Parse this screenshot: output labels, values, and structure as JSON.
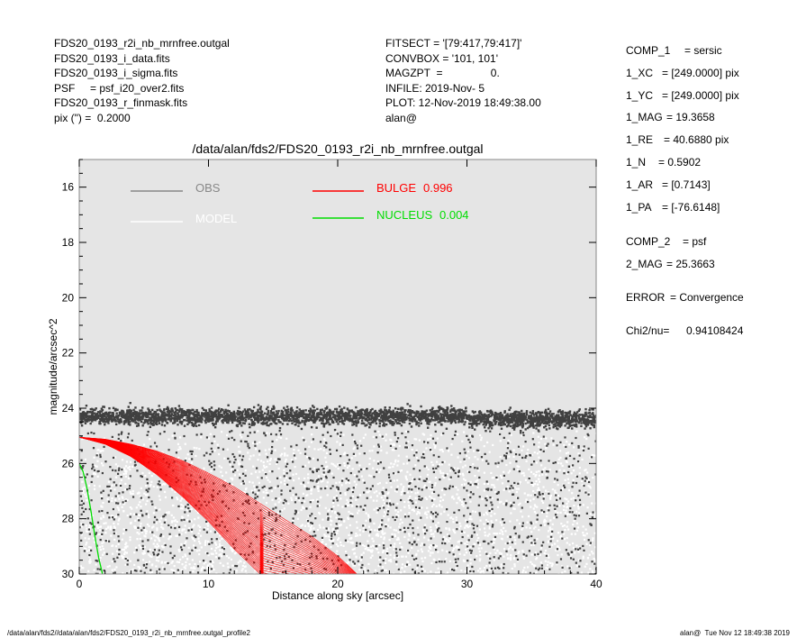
{
  "header_left": [
    "FDS20_0193_r2i_nb_mrnfree.outgal",
    "FDS20_0193_i_data.fits",
    "FDS20_0193_i_sigma.fits",
    "PSF     = psf_i20_over2.fits",
    "FDS20_0193_r_finmask.fits",
    "pix (\") =  0.2000"
  ],
  "header_mid": [
    "FITSECT = '[79:417,79:417]'",
    "CONVBOX = '101, 101'",
    "MAGZPT  =                0.",
    "INFILE: 2019-Nov- 5",
    "PLOT: 12-Nov-2019 18:49:38.00",
    "alan@"
  ],
  "params": [
    {
      "key": "COMP_1",
      "value": "= sersic"
    },
    {
      "key": "1_XC",
      "value": "= [249.0000] pix"
    },
    {
      "key": "1_YC",
      "value": "= [249.0000] pix"
    },
    {
      "key": "1_MAG",
      "value": "= 19.3658"
    },
    {
      "key": "1_RE",
      "value": "= 40.6880 pix"
    },
    {
      "key": "1_N",
      "value": "= 0.5902"
    },
    {
      "key": "1_AR",
      "value": "= [0.7143]"
    },
    {
      "key": "1_PA",
      "value": "= [-76.6148]"
    },
    {
      "key": "COMP_2",
      "value": "= psf"
    },
    {
      "key": "2_MAG",
      "value": "= 25.3663"
    },
    {
      "key": "ERROR",
      "value": "= Convergence"
    },
    {
      "key": "Chi2/nu=",
      "value": "0.94108424"
    }
  ],
  "footer_left": "/data/alan/fds2//data/alan/fds2/FDS20_0193_r2i_nb_mrnfree.outgal_profile2",
  "footer_right": "alan@  Tue Nov 12 18:49:38 2019",
  "colors": {
    "plot_bg": "#e5e5e5",
    "obs": "#404040",
    "obs_legend": "#888888",
    "model": "#ffffff",
    "bulge": "#ff0000",
    "nucleus": "#00dd00"
  },
  "chart_data": {
    "type": "scatter",
    "title": "/data/alan/fds2/FDS20_0193_r2i_nb_mrnfree.outgal",
    "xlabel": "Distance along sky [arcsec]",
    "ylabel": "magnitude/arcsec^2",
    "xlim": [
      0,
      40
    ],
    "ylim": [
      30,
      15
    ],
    "y_inverted": true,
    "xticks": [
      0,
      10,
      20,
      30,
      40
    ],
    "yticks": [
      16,
      18,
      20,
      22,
      24,
      26,
      28,
      30
    ],
    "legend": [
      {
        "name": "OBS",
        "value": "",
        "color": "#888888"
      },
      {
        "name": "MODEL",
        "value": "",
        "color": "#ffffff"
      },
      {
        "name": "BULGE",
        "value": "0.996",
        "color": "#ff0000"
      },
      {
        "name": "NUCLEUS",
        "value": "0.004",
        "color": "#00dd00"
      }
    ],
    "series": [
      {
        "name": "OBS",
        "kind": "points",
        "band_center": 24.3,
        "band_halfwidth": 0.35,
        "x_range": [
          0,
          40
        ],
        "scatter_tail_range": [
          24.8,
          30
        ]
      },
      {
        "name": "MODEL",
        "kind": "points",
        "y_range": [
          24.8,
          30
        ],
        "x_range": [
          0,
          40
        ]
      },
      {
        "name": "BULGE",
        "kind": "band",
        "x": [
          0,
          2,
          4,
          6,
          8,
          10,
          12,
          14,
          16,
          18,
          20,
          21.5
        ],
        "y_upper": [
          25.05,
          25.12,
          25.3,
          25.55,
          25.9,
          26.35,
          26.85,
          27.45,
          28.05,
          28.65,
          29.35,
          30.0
        ],
        "y_lower": [
          25.05,
          25.3,
          25.75,
          26.4,
          27.2,
          28.1,
          29.1,
          30.0,
          null,
          null,
          null,
          null
        ]
      },
      {
        "name": "NUCLEUS",
        "kind": "line",
        "x": [
          0,
          0.3,
          0.6,
          0.9,
          1.2,
          1.5,
          1.8
        ],
        "y": [
          26.0,
          26.3,
          26.9,
          27.7,
          28.6,
          29.4,
          30.0
        ]
      }
    ]
  }
}
